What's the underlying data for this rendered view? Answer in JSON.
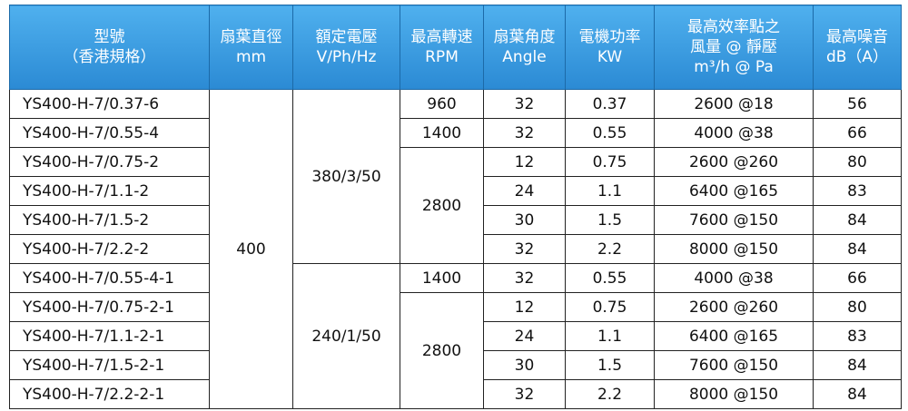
{
  "table": {
    "header": [
      [
        "型號",
        "（香港規格）"
      ],
      [
        "扇葉直徑",
        "mm"
      ],
      [
        "額定電壓",
        "V/Ph/Hz"
      ],
      [
        "最高轉速",
        "RPM"
      ],
      [
        "扇葉角度",
        "Angle"
      ],
      [
        "電機功率",
        "KW"
      ],
      [
        "最高效率點之",
        "風量 @ 靜壓",
        "m³/h @ Pa"
      ],
      [
        "最高噪音",
        "dB（A）"
      ]
    ],
    "diameter": 400,
    "voltage": [
      "380/3/50",
      "240/1/50"
    ],
    "rpm": [
      960,
      1400,
      2800,
      1400,
      2800
    ],
    "rows": [
      [
        "YS400-H-7/0.37-6",
        32,
        0.37,
        "2600 @18",
        56
      ],
      [
        "YS400-H-7/0.55-4",
        32,
        0.55,
        "4000 @38",
        66
      ],
      [
        "YS400-H-7/0.75-2",
        12,
        0.75,
        "2600 @260",
        80
      ],
      [
        "YS400-H-7/1.1-2",
        24,
        1.1,
        "6400 @165",
        83
      ],
      [
        "YS400-H-7/1.5-2",
        30,
        1.5,
        "7600 @150",
        84
      ],
      [
        "YS400-H-7/2.2-2",
        32,
        2.2,
        "8000 @150",
        84
      ],
      [
        "YS400-H-7/0.55-4-1",
        32,
        0.55,
        "4000 @38",
        66
      ],
      [
        "YS400-H-7/0.75-2-1",
        12,
        0.75,
        "2600 @260",
        80
      ],
      [
        "YS400-H-7/1.1-2-1",
        24,
        1.1,
        "6400 @165",
        83
      ],
      [
        "YS400-H-7/1.5-2-1",
        30,
        1.5,
        "7600 @150",
        84
      ],
      [
        "YS400-H-7/2.2-2-1",
        32,
        2.2,
        "8000 @150",
        84
      ]
    ]
  }
}
